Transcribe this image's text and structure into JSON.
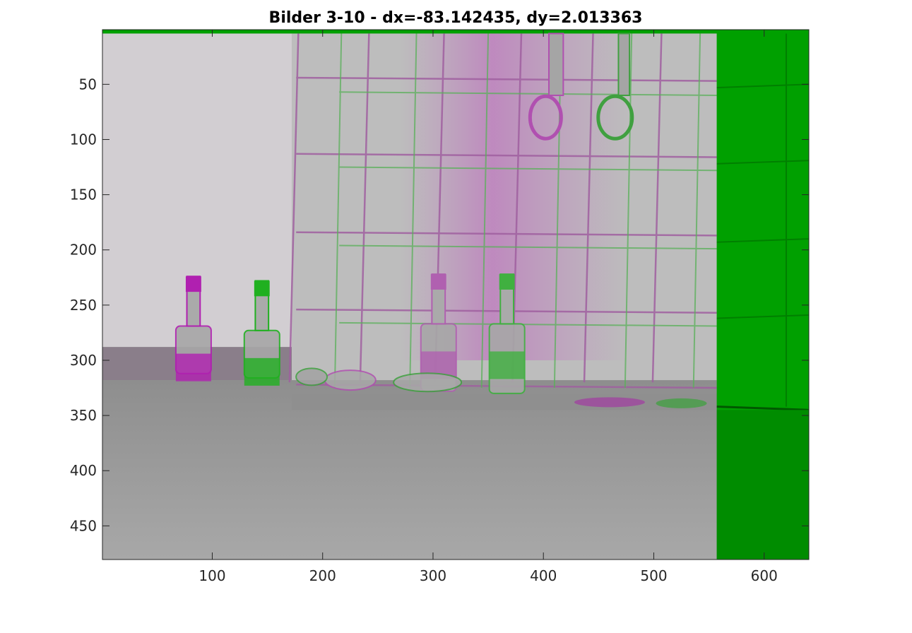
{
  "chart_data": {
    "type": "image",
    "title": "Bilder 3-10 - dx=-83.142435, dy=2.013363",
    "xlabel": "",
    "ylabel": "",
    "xlim": [
      0.5,
      640.5
    ],
    "ylim": [
      0.5,
      480.5
    ],
    "y_direction": "reverse",
    "xticks": [
      100,
      200,
      300,
      400,
      500,
      600
    ],
    "xtick_labels": [
      "100",
      "200",
      "300",
      "400",
      "500",
      "600"
    ],
    "yticks": [
      50,
      100,
      150,
      200,
      250,
      300,
      350,
      400,
      450
    ],
    "ytick_labels": [
      "50",
      "100",
      "150",
      "200",
      "250",
      "300",
      "350",
      "400",
      "450"
    ],
    "grid": false,
    "overlay": {
      "style": "falsecolor magenta-green",
      "moving_image_extent": {
        "x": [
          0.5,
          557
        ],
        "y": [
          4,
          480.5
        ]
      },
      "shift": {
        "dx": -83.142435,
        "dy": 2.013363
      }
    },
    "colors": {
      "magenta": "#b040b0",
      "green": "#00a000",
      "gray": "#9c9c9c"
    }
  }
}
